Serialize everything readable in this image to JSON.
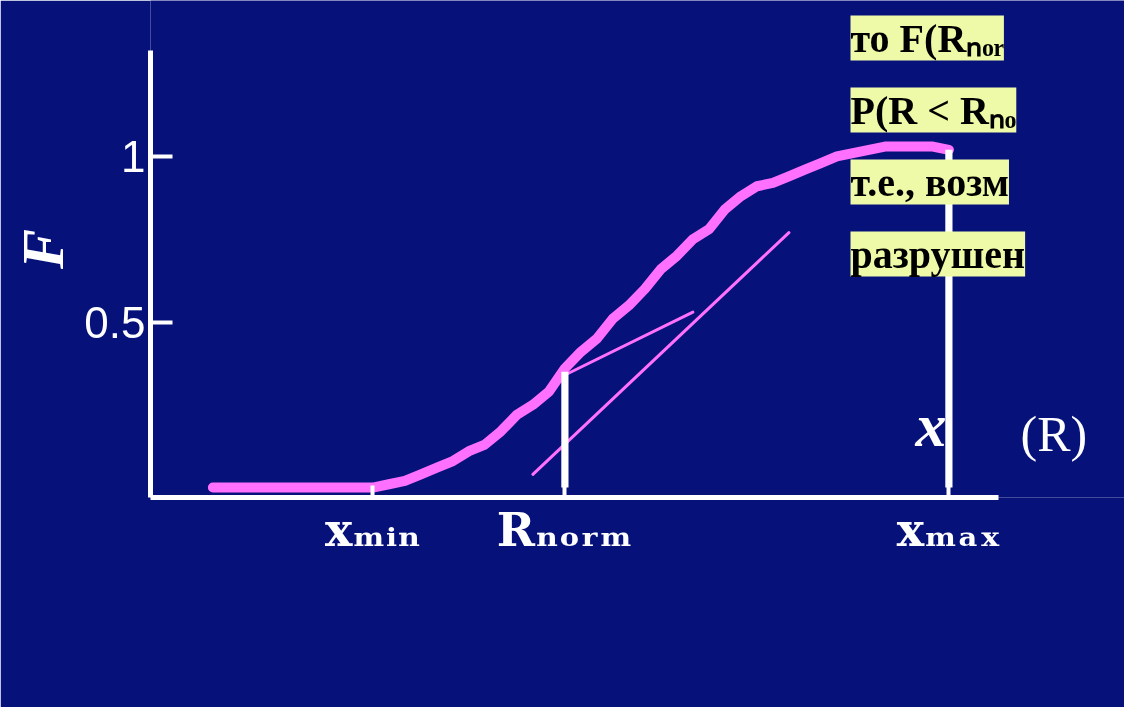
{
  "chart_data": {
    "type": "line",
    "ylabel": "F",
    "xlabel": "x",
    "categories": [
      null,
      null,
      null,
      null,
      null,
      null,
      null,
      null,
      null,
      null,
      "xₘᵢₙ",
      null,
      null,
      null,
      null,
      null,
      null,
      null,
      null,
      null,
      null,
      null,
      "Rₙₒᵣₘ",
      null,
      null,
      null,
      null,
      null,
      null,
      null,
      null,
      null,
      null,
      null,
      null,
      null,
      null,
      null,
      null,
      null,
      null,
      null,
      null,
      null,
      null,
      null,
      "xₘₐₓ"
    ],
    "series": [
      {
        "color": "#ff70ff",
        "values": [
          0,
          0,
          0,
          0,
          0,
          0,
          0,
          0,
          0,
          0,
          0,
          0.01,
          0.02,
          0.04,
          0.06,
          0.08,
          0.11,
          0.13,
          0.17,
          0.22,
          0.25,
          0.29,
          0.36,
          0.41,
          0.45,
          0.51,
          0.55,
          0.6,
          0.66,
          0.7,
          0.75,
          0.78,
          0.84,
          0.88,
          0.91,
          0.92,
          0.94,
          0.96,
          0.98,
          1.0,
          1.01,
          1.02,
          1.03,
          1.03,
          1.03,
          1.03,
          1.02
        ]
      },
      {
        "type": "line",
        "color": "#ff70ff",
        "values": [
          null,
          null,
          null,
          null,
          null,
          null,
          null,
          null,
          null,
          null,
          null,
          null,
          null,
          null,
          null,
          null,
          null,
          null,
          null,
          null,
          0.04,
          null,
          null,
          null,
          null,
          null,
          null,
          null,
          null,
          null,
          null,
          null,
          null,
          null,
          null,
          null,
          0.77,
          null,
          null,
          null,
          null,
          null,
          null,
          null,
          null,
          null,
          null
        ]
      },
      {
        "type": "line",
        "color": "#ff70ff",
        "values": [
          null,
          null,
          null,
          null,
          null,
          null,
          null,
          null,
          null,
          null,
          null,
          null,
          null,
          null,
          null,
          null,
          null,
          null,
          null,
          null,
          null,
          null,
          0.34,
          null,
          null,
          null,
          null,
          null,
          null,
          null,
          0.53,
          null,
          null,
          null,
          null,
          null,
          null,
          null,
          null,
          null,
          null,
          null,
          null,
          null,
          null,
          null,
          null
        ]
      },
      {
        "type": "bar",
        "color": "#ffffff",
        "values": [
          null,
          null,
          null,
          null,
          null,
          null,
          null,
          null,
          null,
          null,
          null,
          null,
          null,
          null,
          null,
          null,
          null,
          null,
          null,
          null,
          null,
          null,
          0.35,
          null,
          null,
          null,
          null,
          null,
          null,
          null,
          null,
          null,
          null,
          null,
          null,
          null,
          null,
          null,
          null,
          null,
          null,
          null,
          null,
          null,
          null,
          null,
          1.02
        ]
      }
    ],
    "ylim": [
      -0.03,
      1.32
    ],
    "yticks": [
      0.5,
      1
    ],
    "grid": false,
    "annotations": [
      "(R)",
      "то F(Rₙₒᵣ",
      "P(R < Rₙₒ",
      "т.е., возм",
      "разрушен"
    ]
  }
}
